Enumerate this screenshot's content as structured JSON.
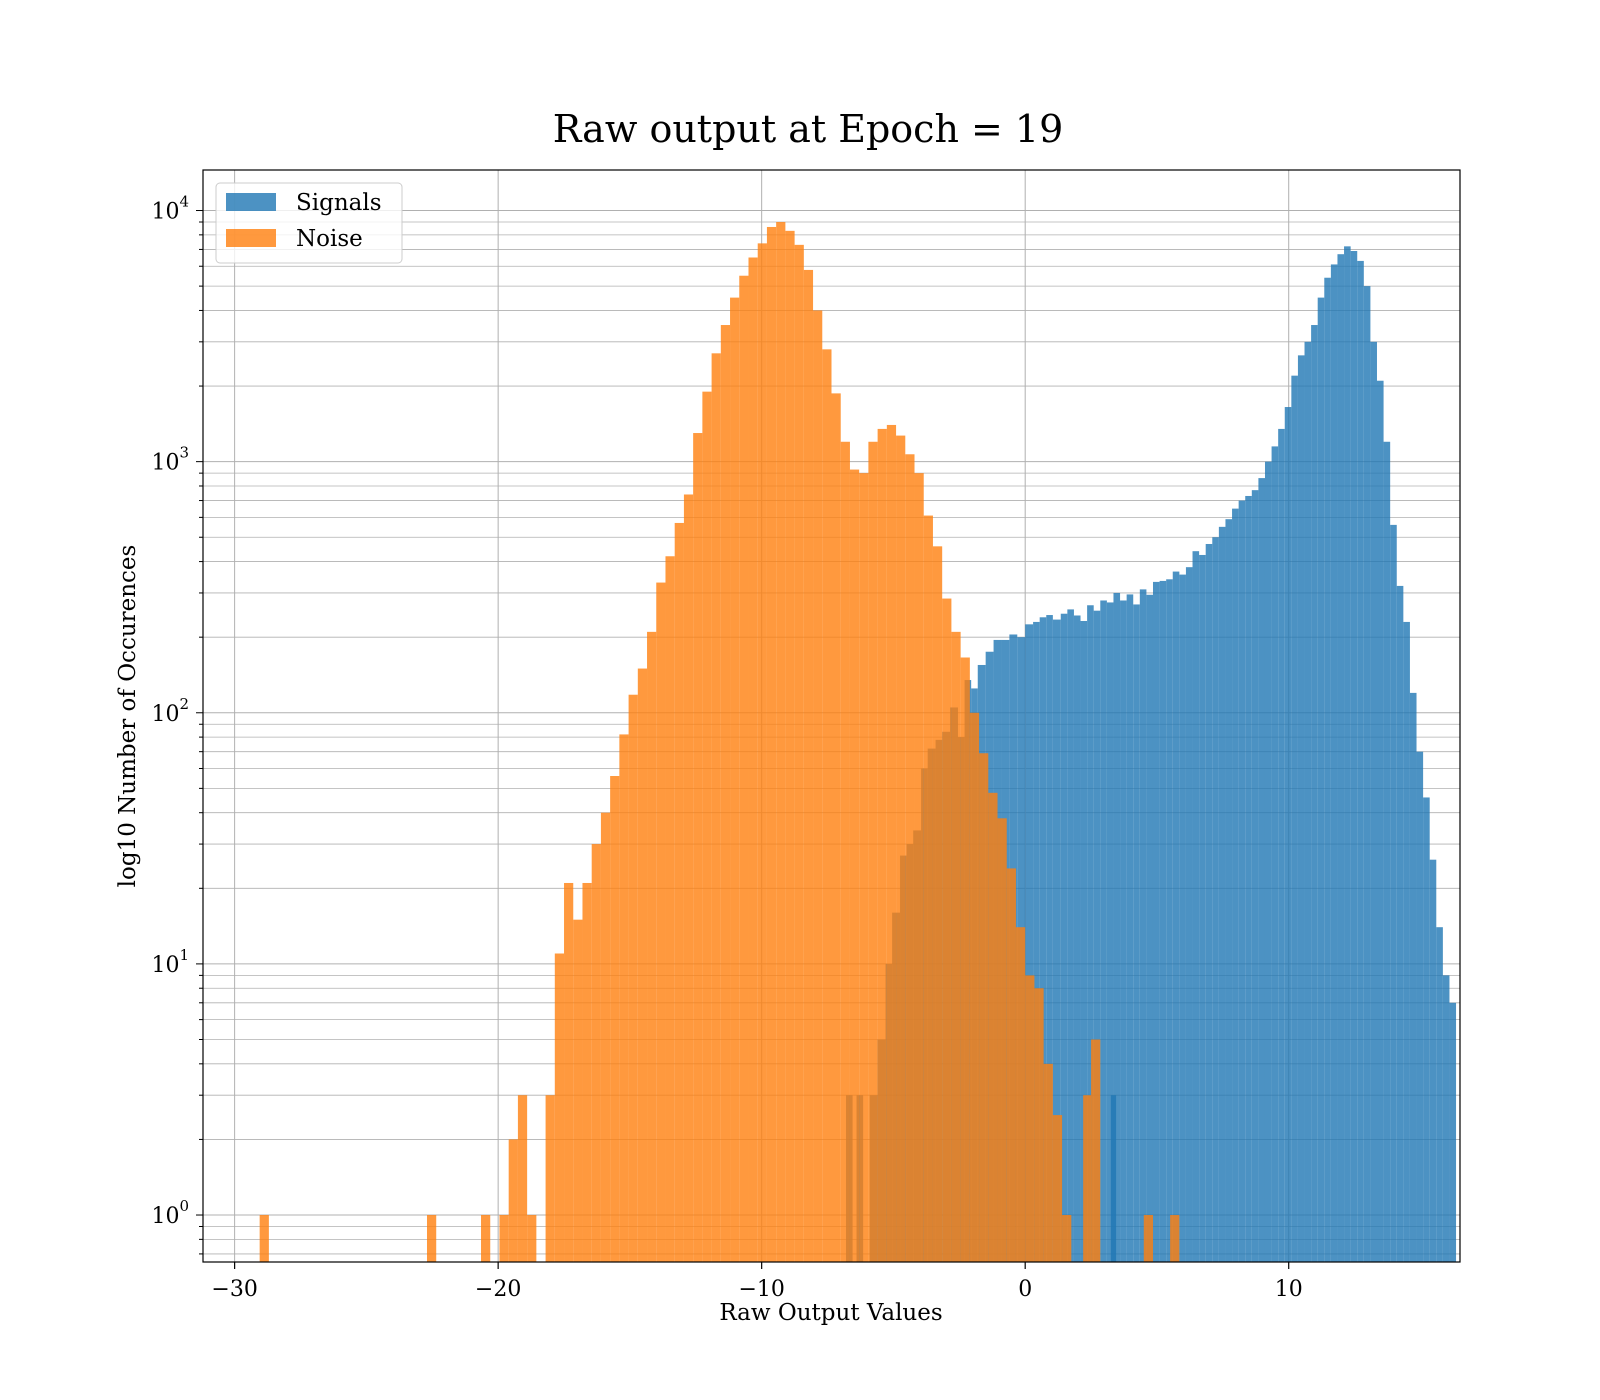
{
  "chart_data": {
    "type": "bar",
    "title": "Raw output at Epoch = 19",
    "xlabel": "Raw Output Values",
    "ylabel": "log10 Number of Occurences",
    "xlim": [
      -31.2,
      16.5
    ],
    "ylim": [
      0.65,
      14500
    ],
    "yscale": "log",
    "grid": true,
    "legend_position": "upper-left",
    "x_ticks": [
      {
        "value": -30,
        "label": "−30"
      },
      {
        "value": -20,
        "label": "−20"
      },
      {
        "value": -10,
        "label": "−10"
      },
      {
        "value": 0,
        "label": "0"
      },
      {
        "value": 10,
        "label": "10"
      }
    ],
    "y_ticks": [
      {
        "value": 1,
        "base": "10",
        "exp": "0"
      },
      {
        "value": 10,
        "base": "10",
        "exp": "1"
      },
      {
        "value": 100,
        "base": "10",
        "exp": "2"
      },
      {
        "value": 1000,
        "base": "10",
        "exp": "3"
      },
      {
        "value": 10000,
        "base": "10",
        "exp": "4"
      }
    ],
    "series": [
      {
        "name": "Signals",
        "color": "#1f77b4",
        "opacity": 0.8,
        "bins": [
          [
            -6.8,
            -6.55,
            3
          ],
          [
            -6.4,
            -6.15,
            3
          ],
          [
            -5.9,
            -5.6,
            3
          ],
          [
            -5.6,
            -5.3,
            5
          ],
          [
            -5.3,
            -5.05,
            10
          ],
          [
            -5.05,
            -4.75,
            16
          ],
          [
            -4.75,
            -4.5,
            27
          ],
          [
            -4.5,
            -4.25,
            30
          ],
          [
            -4.25,
            -3.95,
            34
          ],
          [
            -3.95,
            -3.7,
            60
          ],
          [
            -3.7,
            -3.4,
            72
          ],
          [
            -3.4,
            -3.15,
            78
          ],
          [
            -3.15,
            -2.85,
            84
          ],
          [
            -2.85,
            -2.55,
            105
          ],
          [
            -2.55,
            -2.3,
            80
          ],
          [
            -2.3,
            -2.05,
            135
          ],
          [
            -2.05,
            -1.8,
            125
          ],
          [
            -1.8,
            -1.5,
            155
          ],
          [
            -1.5,
            -1.2,
            175
          ],
          [
            -1.2,
            -0.9,
            195
          ],
          [
            -0.9,
            -0.6,
            195
          ],
          [
            -0.6,
            -0.3,
            205
          ],
          [
            -0.3,
            0.0,
            200
          ],
          [
            0.0,
            0.3,
            225
          ],
          [
            0.3,
            0.55,
            230
          ],
          [
            0.55,
            0.8,
            240
          ],
          [
            0.8,
            1.05,
            245
          ],
          [
            1.05,
            1.35,
            235
          ],
          [
            1.35,
            1.6,
            248
          ],
          [
            1.6,
            1.85,
            258
          ],
          [
            1.85,
            2.1,
            244
          ],
          [
            2.1,
            2.35,
            232
          ],
          [
            2.35,
            2.6,
            268
          ],
          [
            2.6,
            2.85,
            255
          ],
          [
            2.85,
            3.1,
            280
          ],
          [
            3.1,
            3.35,
            275
          ],
          [
            3.35,
            3.6,
            300
          ],
          [
            3.6,
            3.85,
            280
          ],
          [
            3.85,
            4.1,
            296
          ],
          [
            4.1,
            4.35,
            270
          ],
          [
            4.35,
            4.6,
            310
          ],
          [
            4.6,
            4.85,
            295
          ],
          [
            4.85,
            5.1,
            332
          ],
          [
            5.1,
            5.35,
            335
          ],
          [
            5.35,
            5.6,
            340
          ],
          [
            5.6,
            5.85,
            365
          ],
          [
            5.85,
            6.1,
            355
          ],
          [
            6.1,
            6.35,
            380
          ],
          [
            6.35,
            6.6,
            440
          ],
          [
            6.6,
            6.85,
            425
          ],
          [
            6.85,
            7.1,
            470
          ],
          [
            7.1,
            7.35,
            500
          ],
          [
            7.35,
            7.6,
            550
          ],
          [
            7.6,
            7.85,
            590
          ],
          [
            7.85,
            8.1,
            650
          ],
          [
            8.1,
            8.35,
            700
          ],
          [
            8.35,
            8.6,
            730
          ],
          [
            8.6,
            8.85,
            770
          ],
          [
            8.85,
            9.1,
            860
          ],
          [
            9.1,
            9.35,
            1000
          ],
          [
            9.35,
            9.6,
            1150
          ],
          [
            9.6,
            9.85,
            1350
          ],
          [
            9.85,
            10.1,
            1650
          ],
          [
            10.1,
            10.35,
            2200
          ],
          [
            10.35,
            10.6,
            2650
          ],
          [
            10.6,
            10.85,
            3000
          ],
          [
            10.85,
            11.1,
            3500
          ],
          [
            11.1,
            11.35,
            4500
          ],
          [
            11.35,
            11.6,
            5400
          ],
          [
            11.6,
            11.85,
            6100
          ],
          [
            11.85,
            12.1,
            6700
          ],
          [
            12.1,
            12.35,
            7200
          ],
          [
            12.35,
            12.6,
            6900
          ],
          [
            12.6,
            12.85,
            6300
          ],
          [
            12.85,
            13.1,
            5000
          ],
          [
            13.1,
            13.35,
            3000
          ],
          [
            13.35,
            13.6,
            2100
          ],
          [
            13.6,
            13.85,
            1200
          ],
          [
            13.85,
            14.1,
            560
          ],
          [
            14.1,
            14.35,
            320
          ],
          [
            14.35,
            14.6,
            230
          ],
          [
            14.6,
            14.85,
            120
          ],
          [
            14.85,
            15.1,
            70
          ],
          [
            15.1,
            15.35,
            46
          ],
          [
            15.35,
            15.6,
            26
          ],
          [
            15.6,
            15.85,
            14
          ],
          [
            15.85,
            16.1,
            9
          ],
          [
            16.1,
            16.35,
            7
          ],
          [
            3.25,
            3.45,
            3
          ]
        ]
      },
      {
        "name": "Noise",
        "color": "#ff7f0e",
        "opacity": 0.8,
        "bins": [
          [
            -29.05,
            -28.7,
            1
          ],
          [
            -22.7,
            -22.35,
            1
          ],
          [
            -20.65,
            -20.3,
            1
          ],
          [
            -19.95,
            -19.6,
            1
          ],
          [
            -19.6,
            -19.25,
            2
          ],
          [
            -19.25,
            -18.9,
            3
          ],
          [
            -18.9,
            -18.55,
            1
          ],
          [
            -18.2,
            -17.85,
            3
          ],
          [
            -17.85,
            -17.5,
            11
          ],
          [
            -17.5,
            -17.15,
            21
          ],
          [
            -17.15,
            -16.8,
            15
          ],
          [
            -16.8,
            -16.45,
            21
          ],
          [
            -16.45,
            -16.1,
            30
          ],
          [
            -16.1,
            -15.75,
            40
          ],
          [
            -15.75,
            -15.4,
            56
          ],
          [
            -15.4,
            -15.05,
            82
          ],
          [
            -15.05,
            -14.7,
            118
          ],
          [
            -14.7,
            -14.35,
            150
          ],
          [
            -14.35,
            -14.0,
            210
          ],
          [
            -14.0,
            -13.65,
            330
          ],
          [
            -13.65,
            -13.3,
            420
          ],
          [
            -13.3,
            -12.95,
            570
          ],
          [
            -12.95,
            -12.6,
            740
          ],
          [
            -12.6,
            -12.25,
            1300
          ],
          [
            -12.25,
            -11.9,
            1900
          ],
          [
            -11.9,
            -11.55,
            2700
          ],
          [
            -11.55,
            -11.2,
            3500
          ],
          [
            -11.2,
            -10.85,
            4500
          ],
          [
            -10.85,
            -10.5,
            5500
          ],
          [
            -10.5,
            -10.15,
            6500
          ],
          [
            -10.15,
            -9.8,
            7400
          ],
          [
            -9.8,
            -9.45,
            8600
          ],
          [
            -9.45,
            -9.1,
            9000
          ],
          [
            -9.1,
            -8.75,
            8300
          ],
          [
            -8.75,
            -8.4,
            7300
          ],
          [
            -8.4,
            -8.05,
            5800
          ],
          [
            -8.05,
            -7.7,
            4000
          ],
          [
            -7.7,
            -7.35,
            2800
          ],
          [
            -7.35,
            -7.0,
            1870
          ],
          [
            -7.0,
            -6.65,
            1200
          ],
          [
            -6.65,
            -6.3,
            930
          ],
          [
            -6.3,
            -5.95,
            900
          ],
          [
            -5.95,
            -5.6,
            1200
          ],
          [
            -5.6,
            -5.25,
            1350
          ],
          [
            -5.25,
            -4.9,
            1400
          ],
          [
            -4.9,
            -4.55,
            1270
          ],
          [
            -4.55,
            -4.2,
            1070
          ],
          [
            -4.2,
            -3.85,
            900
          ],
          [
            -3.85,
            -3.5,
            610
          ],
          [
            -3.5,
            -3.15,
            460
          ],
          [
            -3.15,
            -2.8,
            285
          ],
          [
            -2.8,
            -2.45,
            210
          ],
          [
            -2.45,
            -2.1,
            166
          ],
          [
            -2.1,
            -1.75,
            100
          ],
          [
            -1.75,
            -1.4,
            69
          ],
          [
            -1.4,
            -1.05,
            48
          ],
          [
            -1.05,
            -0.7,
            38
          ],
          [
            -0.7,
            -0.35,
            24
          ],
          [
            -0.35,
            0.0,
            14
          ],
          [
            0.0,
            0.35,
            9
          ],
          [
            0.35,
            0.7,
            8
          ],
          [
            0.7,
            1.05,
            4
          ],
          [
            1.05,
            1.4,
            2.5
          ],
          [
            1.4,
            1.75,
            1
          ],
          [
            2.2,
            2.5,
            3
          ],
          [
            2.5,
            2.85,
            5
          ],
          [
            4.5,
            4.85,
            1
          ],
          [
            5.5,
            5.85,
            1
          ]
        ]
      }
    ]
  }
}
